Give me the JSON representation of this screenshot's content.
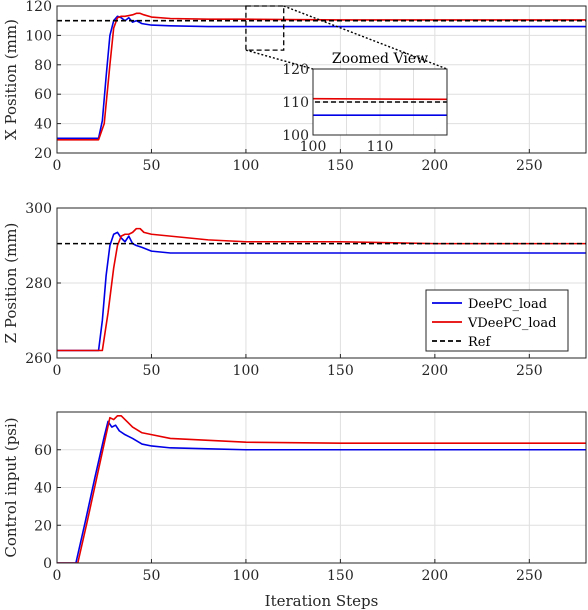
{
  "chart_data": [
    {
      "type": "line",
      "ylabel": "X Position (mm)",
      "xlabel": "",
      "xlim": [
        0,
        280
      ],
      "ylim": [
        20,
        120
      ],
      "xticks": [
        0,
        50,
        100,
        150,
        200,
        250
      ],
      "yticks": [
        20,
        40,
        60,
        80,
        100,
        120
      ],
      "grid": true,
      "series": [
        {
          "name": "DeePC_load",
          "color": "#0000e6",
          "style": "solid",
          "x": [
            0,
            22,
            24,
            26,
            28,
            30,
            32,
            34,
            36,
            38,
            40,
            42,
            45,
            50,
            60,
            80,
            100,
            150,
            200,
            250,
            280
          ],
          "y": [
            30,
            30,
            42,
            72,
            100,
            110,
            113,
            112,
            110,
            112,
            109,
            110,
            108,
            107,
            106.5,
            106,
            106,
            106,
            106,
            106,
            106
          ]
        },
        {
          "name": "VDeePC_load",
          "color": "#e60000",
          "style": "solid",
          "x": [
            0,
            22,
            25,
            28,
            30,
            32,
            34,
            36,
            40,
            42,
            44,
            46,
            50,
            60,
            80,
            100,
            150,
            200,
            250,
            280
          ],
          "y": [
            29,
            29,
            40,
            80,
            105,
            112,
            113,
            113,
            114,
            115,
            115,
            114,
            112.5,
            111.5,
            111,
            111,
            110.5,
            110.5,
            110.5,
            110.5
          ]
        },
        {
          "name": "Ref",
          "color": "#000000",
          "style": "dashed",
          "x": [
            0,
            280
          ],
          "y": [
            110,
            110
          ]
        }
      ],
      "inset": {
        "title": "Zoomed View",
        "xlim": [
          100,
          120
        ],
        "ylim": [
          100,
          120
        ],
        "xticks": [
          100,
          110
        ],
        "yticks": [
          100,
          110,
          120
        ],
        "zoom_box": {
          "x": [
            100,
            120
          ],
          "y": [
            90,
            120
          ]
        }
      }
    },
    {
      "type": "line",
      "ylabel": "Z Position (mm)",
      "xlabel": "",
      "xlim": [
        0,
        280
      ],
      "ylim": [
        260,
        300
      ],
      "xticks": [
        0,
        50,
        100,
        150,
        200,
        250
      ],
      "yticks": [
        260,
        280,
        300
      ],
      "grid": true,
      "legend_position": "bottom-right",
      "series": [
        {
          "name": "DeePC_load",
          "color": "#0000e6",
          "style": "solid",
          "x": [
            0,
            22,
            24,
            26,
            28,
            30,
            32,
            34,
            36,
            38,
            40,
            42,
            45,
            50,
            60,
            80,
            100,
            150,
            200,
            250,
            280
          ],
          "y": [
            262,
            262,
            270,
            282,
            290,
            293,
            293.5,
            292,
            291,
            292.5,
            290.5,
            290,
            289.5,
            288.5,
            288,
            288,
            288,
            288,
            288,
            288,
            288
          ]
        },
        {
          "name": "VDeePC_load",
          "color": "#e60000",
          "style": "solid",
          "x": [
            0,
            24,
            27,
            30,
            32,
            34,
            36,
            38,
            40,
            42,
            44,
            46,
            50,
            60,
            80,
            100,
            150,
            200,
            250,
            280
          ],
          "y": [
            262,
            262,
            272,
            284,
            290,
            292.5,
            293,
            293,
            293.5,
            294.5,
            294.5,
            293.5,
            293,
            292.5,
            291.5,
            291,
            291,
            290.5,
            290.5,
            290.5
          ]
        },
        {
          "name": "Ref",
          "color": "#000000",
          "style": "dashed",
          "x": [
            0,
            280
          ],
          "y": [
            290.5,
            290.5
          ]
        }
      ]
    },
    {
      "type": "line",
      "ylabel": "Control input (psi)",
      "xlabel": "Iteration Steps",
      "xlim": [
        0,
        280
      ],
      "ylim": [
        0,
        80
      ],
      "xticks": [
        0,
        50,
        100,
        150,
        200,
        250
      ],
      "yticks": [
        0,
        20,
        40,
        60
      ],
      "grid": true,
      "series": [
        {
          "name": "DeePC_load",
          "color": "#0000e6",
          "style": "solid",
          "x": [
            0,
            10,
            15,
            20,
            25,
            27,
            29,
            31,
            33,
            36,
            40,
            45,
            50,
            60,
            80,
            100,
            150,
            200,
            250,
            280
          ],
          "y": [
            0,
            0,
            22,
            45,
            67,
            75,
            72,
            73,
            70,
            68,
            66,
            63,
            62,
            61,
            60.5,
            60,
            60,
            60,
            60,
            60
          ]
        },
        {
          "name": "VDeePC_load",
          "color": "#e60000",
          "style": "solid",
          "x": [
            0,
            11,
            16,
            21,
            26,
            28,
            30,
            32,
            34,
            36,
            40,
            45,
            50,
            60,
            80,
            100,
            150,
            200,
            250,
            280
          ],
          "y": [
            0,
            0,
            22,
            45,
            68,
            77,
            76,
            78,
            78,
            76,
            72,
            69,
            68,
            66,
            65,
            64,
            63.5,
            63.5,
            63.5,
            63.5
          ]
        }
      ]
    }
  ],
  "legend": {
    "items": [
      {
        "label": "DeePC_load",
        "color": "#0000e6",
        "style": "solid"
      },
      {
        "label": "VDeePC_load",
        "color": "#e60000",
        "style": "solid"
      },
      {
        "label": "Ref",
        "color": "#000000",
        "style": "dashed"
      }
    ]
  }
}
